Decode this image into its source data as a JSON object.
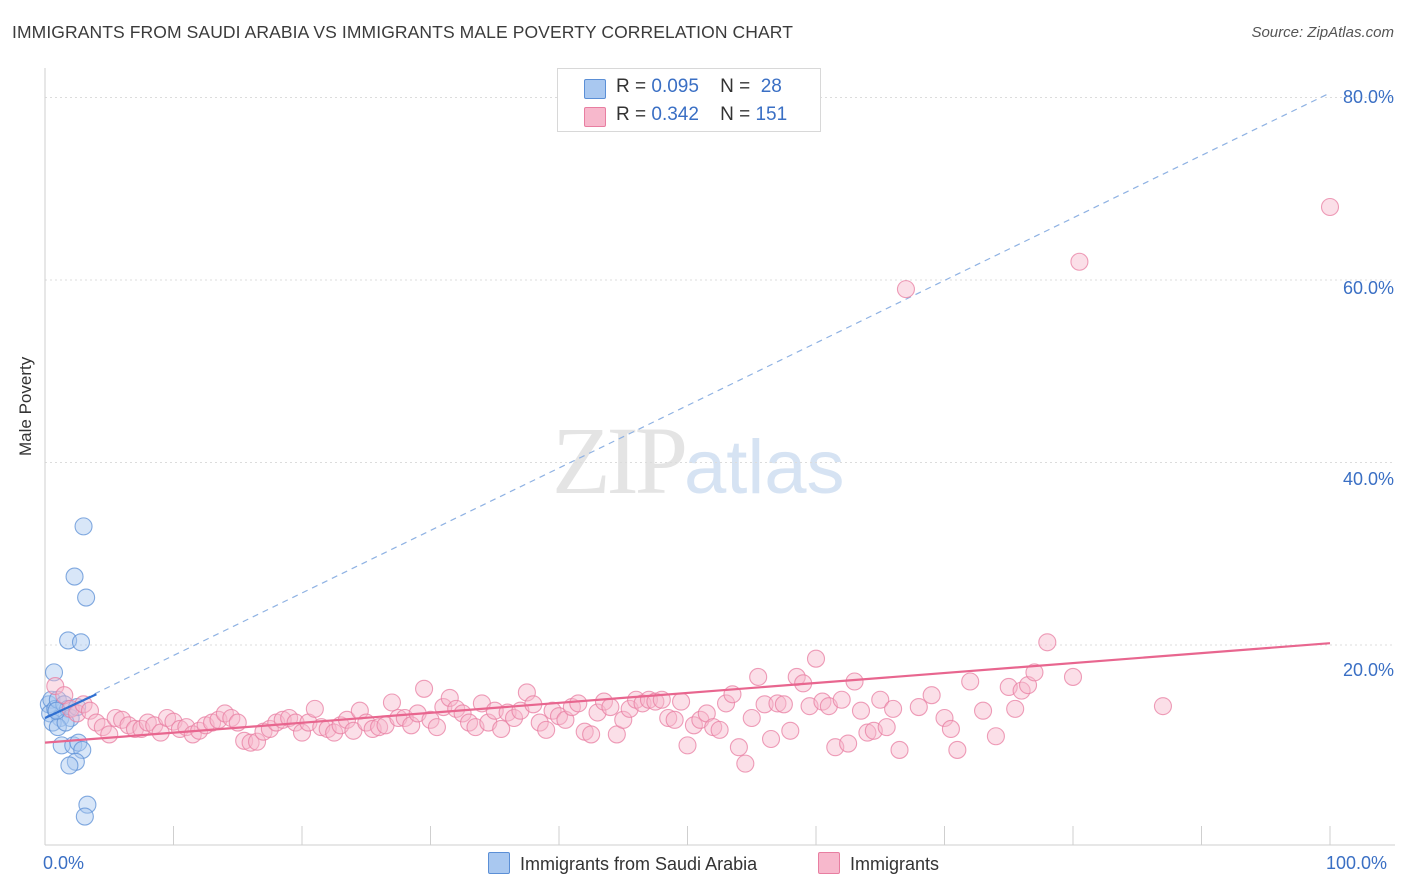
{
  "title": "IMMIGRANTS FROM SAUDI ARABIA VS IMMIGRANTS MALE POVERTY CORRELATION CHART",
  "source": "Source: ZipAtlas.com",
  "watermark": {
    "zip": "ZIP",
    "atlas": "atlas"
  },
  "legend": {
    "rows": [
      {
        "r_label": "R =",
        "r_value": "0.095",
        "n_label": "N =",
        "n_value": "28",
        "color": "#a9c8f0"
      },
      {
        "r_label": "R =",
        "r_value": "0.342",
        "n_label": "N =",
        "n_value": "151",
        "color": "#f7b8cc"
      }
    ]
  },
  "bottom_legend": [
    {
      "label": "Immigrants from Saudi Arabia",
      "color": "#a9c8f0"
    },
    {
      "label": "Immigrants",
      "color": "#f7b8cc"
    }
  ],
  "chart_data": {
    "type": "scatter",
    "title": "IMMIGRANTS FROM SAUDI ARABIA VS IMMIGRANTS MALE POVERTY CORRELATION CHART",
    "xlabel": "",
    "ylabel": "Male Poverty",
    "xlim": [
      0,
      100
    ],
    "ylim": [
      0,
      80
    ],
    "x_tick_labels": [
      "0.0%",
      "100.0%"
    ],
    "y_tick_labels": [
      "20.0%",
      "40.0%",
      "60.0%",
      "80.0%"
    ],
    "y_ticks": [
      20,
      40,
      60,
      80
    ],
    "grid": "horizontal dashed",
    "legend_position": "top-center",
    "series": [
      {
        "name": "Immigrants from Saudi Arabia",
        "color": "#5b8fd6",
        "fill": "#a9c8f0",
        "points": [
          [
            0.3,
            13.5
          ],
          [
            0.5,
            14.0
          ],
          [
            0.4,
            12.5
          ],
          [
            0.8,
            13.0
          ],
          [
            1.0,
            14.0
          ],
          [
            1.2,
            12.0
          ],
          [
            0.6,
            11.5
          ],
          [
            1.5,
            13.5
          ],
          [
            0.7,
            17.0
          ],
          [
            1.8,
            13.0
          ],
          [
            2.0,
            12.0
          ],
          [
            1.0,
            11.0
          ],
          [
            1.6,
            11.5
          ],
          [
            1.3,
            9.0
          ],
          [
            2.2,
            9.0
          ],
          [
            2.6,
            9.3
          ],
          [
            2.9,
            8.5
          ],
          [
            2.4,
            7.2
          ],
          [
            1.9,
            6.8
          ],
          [
            1.8,
            20.5
          ],
          [
            2.8,
            20.3
          ],
          [
            2.3,
            27.5
          ],
          [
            3.2,
            25.2
          ],
          [
            3.0,
            33.0
          ],
          [
            3.3,
            2.5
          ],
          [
            3.1,
            1.2
          ],
          [
            2.5,
            13.2
          ],
          [
            0.9,
            12.8
          ]
        ],
        "trend": {
          "x": [
            0,
            4
          ],
          "y": [
            12.0,
            14.6
          ]
        }
      },
      {
        "name": "Immigrants",
        "color": "#e87ea1",
        "fill": "#f7b8cc",
        "points": [
          [
            0.8,
            15.5
          ],
          [
            1.5,
            14.5
          ],
          [
            2.0,
            13.0
          ],
          [
            2.5,
            12.5
          ],
          [
            3.0,
            13.5
          ],
          [
            3.5,
            12.8
          ],
          [
            4.0,
            11.5
          ],
          [
            4.5,
            11.0
          ],
          [
            5.0,
            10.2
          ],
          [
            5.5,
            12.0
          ],
          [
            6.0,
            11.8
          ],
          [
            6.5,
            11.2
          ],
          [
            7.0,
            10.8
          ],
          [
            7.5,
            10.8
          ],
          [
            8.0,
            11.5
          ],
          [
            8.5,
            11.2
          ],
          [
            9.0,
            10.4
          ],
          [
            9.5,
            12.0
          ],
          [
            10.0,
            11.6
          ],
          [
            10.5,
            10.8
          ],
          [
            11.0,
            11.0
          ],
          [
            11.5,
            10.2
          ],
          [
            12.0,
            10.6
          ],
          [
            12.5,
            11.2
          ],
          [
            13.0,
            11.5
          ],
          [
            13.5,
            11.8
          ],
          [
            14.0,
            12.5
          ],
          [
            14.5,
            12.0
          ],
          [
            15.0,
            11.5
          ],
          [
            15.5,
            9.5
          ],
          [
            16.0,
            9.3
          ],
          [
            16.5,
            9.4
          ],
          [
            17.0,
            10.5
          ],
          [
            17.5,
            10.8
          ],
          [
            18.0,
            11.5
          ],
          [
            18.5,
            11.8
          ],
          [
            19.0,
            12.0
          ],
          [
            19.5,
            11.5
          ],
          [
            20.0,
            10.4
          ],
          [
            20.5,
            11.5
          ],
          [
            21.0,
            13.0
          ],
          [
            21.5,
            11.0
          ],
          [
            22.0,
            10.8
          ],
          [
            22.5,
            10.4
          ],
          [
            23.0,
            11.2
          ],
          [
            23.5,
            11.8
          ],
          [
            24.0,
            10.6
          ],
          [
            24.5,
            12.8
          ],
          [
            25.0,
            11.5
          ],
          [
            25.5,
            10.8
          ],
          [
            26.0,
            11.0
          ],
          [
            26.5,
            11.2
          ],
          [
            27.0,
            13.7
          ],
          [
            27.5,
            12.0
          ],
          [
            28.0,
            12.0
          ],
          [
            28.5,
            11.2
          ],
          [
            29.0,
            12.5
          ],
          [
            29.5,
            15.2
          ],
          [
            30.0,
            11.8
          ],
          [
            30.5,
            11.0
          ],
          [
            31.0,
            13.2
          ],
          [
            31.5,
            14.2
          ],
          [
            32.0,
            13.0
          ],
          [
            32.5,
            12.5
          ],
          [
            33.0,
            11.5
          ],
          [
            33.5,
            11.0
          ],
          [
            34.0,
            13.6
          ],
          [
            34.5,
            11.5
          ],
          [
            35.0,
            12.8
          ],
          [
            35.5,
            10.8
          ],
          [
            36.0,
            12.6
          ],
          [
            36.5,
            12.0
          ],
          [
            37.0,
            12.8
          ],
          [
            37.5,
            14.8
          ],
          [
            38.0,
            13.5
          ],
          [
            38.5,
            11.5
          ],
          [
            39.0,
            10.7
          ],
          [
            39.5,
            12.8
          ],
          [
            40.0,
            12.2
          ],
          [
            40.5,
            11.8
          ],
          [
            41.0,
            13.2
          ],
          [
            41.5,
            13.6
          ],
          [
            42.0,
            10.5
          ],
          [
            42.5,
            10.2
          ],
          [
            43.0,
            12.6
          ],
          [
            43.5,
            13.8
          ],
          [
            44.0,
            13.2
          ],
          [
            44.5,
            10.2
          ],
          [
            45.0,
            11.8
          ],
          [
            45.5,
            13.0
          ],
          [
            46.0,
            14.0
          ],
          [
            46.5,
            13.6
          ],
          [
            47.0,
            14.0
          ],
          [
            47.5,
            13.8
          ],
          [
            48.0,
            14.0
          ],
          [
            48.5,
            12.0
          ],
          [
            49.0,
            11.8
          ],
          [
            49.5,
            13.8
          ],
          [
            50.0,
            9.0
          ],
          [
            50.5,
            11.2
          ],
          [
            51.0,
            11.8
          ],
          [
            51.5,
            12.5
          ],
          [
            52.0,
            11.0
          ],
          [
            52.5,
            10.7
          ],
          [
            53.0,
            13.6
          ],
          [
            53.5,
            14.6
          ],
          [
            54.0,
            8.8
          ],
          [
            54.5,
            7.0
          ],
          [
            55.0,
            12.0
          ],
          [
            55.5,
            16.5
          ],
          [
            56.0,
            13.5
          ],
          [
            56.5,
            9.7
          ],
          [
            57.0,
            13.6
          ],
          [
            57.5,
            13.5
          ],
          [
            58.0,
            10.6
          ],
          [
            58.5,
            16.5
          ],
          [
            59.0,
            15.8
          ],
          [
            59.5,
            13.3
          ],
          [
            60.0,
            18.5
          ],
          [
            60.5,
            13.8
          ],
          [
            61.0,
            13.3
          ],
          [
            61.5,
            8.8
          ],
          [
            62.0,
            14.0
          ],
          [
            62.5,
            9.2
          ],
          [
            63.0,
            16.0
          ],
          [
            63.5,
            12.8
          ],
          [
            64.0,
            10.4
          ],
          [
            64.5,
            10.6
          ],
          [
            65.0,
            14.0
          ],
          [
            65.5,
            11.0
          ],
          [
            66.0,
            13.0
          ],
          [
            66.5,
            8.5
          ],
          [
            67.0,
            59.0
          ],
          [
            68.0,
            13.2
          ],
          [
            69.0,
            14.5
          ],
          [
            70.0,
            12.0
          ],
          [
            70.5,
            10.8
          ],
          [
            71.0,
            8.5
          ],
          [
            72.0,
            16.0
          ],
          [
            73.0,
            12.8
          ],
          [
            74.0,
            10.0
          ],
          [
            75.0,
            15.4
          ],
          [
            75.5,
            13.0
          ],
          [
            76.0,
            15.0
          ],
          [
            76.5,
            15.6
          ],
          [
            77.0,
            17.0
          ],
          [
            78.0,
            20.3
          ],
          [
            80.0,
            16.5
          ],
          [
            80.5,
            62.0
          ],
          [
            87.0,
            13.3
          ],
          [
            100.0,
            68.0
          ]
        ],
        "trend": {
          "x": [
            0,
            100
          ],
          "y": [
            9.3,
            20.2
          ]
        },
        "trend_extrapolation": {
          "x": [
            0,
            100
          ],
          "y": [
            12.0,
            80.5
          ]
        }
      }
    ]
  }
}
